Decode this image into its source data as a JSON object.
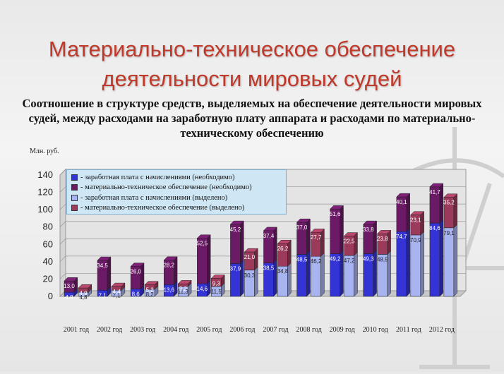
{
  "title_line1": "Материально-техническое обеспечение",
  "title_line2": "деятельности мировых судей",
  "subtitle": "Соотношение в структуре средств, выделяемых на обеспечение деятельности мировых судей, между расходами на заработную плату аппарата и расходами по материально-техническому обеспечению",
  "colors": {
    "salary_needed": "#3333d6",
    "material_needed": "#6b1a66",
    "salary_allocated": "#a8b4f0",
    "material_allocated": "#9c3a5c"
  },
  "chart_data": {
    "type": "bar",
    "ylabel": "Млн. руб.",
    "ylim": [
      0,
      140
    ],
    "yticks": [
      "0",
      "20",
      "40",
      "60",
      "80",
      "100",
      "120",
      "140"
    ],
    "categories": [
      "2001 год",
      "2002 год",
      "2003 год",
      "2004 год",
      "2005 год",
      "2006 год",
      "2007 год",
      "2008 год",
      "2009 год",
      "2010 год",
      "2011 год",
      "2012 год"
    ],
    "legend": [
      "- заработная плата с начислениями (необходимо)",
      "- материально-техническое обеспечение (необходимо)",
      "- заработная плата с начислениями (выделено)",
      "- материально-техническое обеспечение (выделено)"
    ],
    "stacks": [
      {
        "name": "необходимо",
        "salary": [
          4.8,
          7.1,
          8.6,
          13.6,
          14.6,
          37.9,
          38.5,
          48.5,
          49.2,
          49.3,
          74.7,
          84.6
        ],
        "material": [
          13.0,
          34.5,
          26.0,
          28.2,
          52.5,
          45.2,
          37.4,
          37.0,
          51.6,
          33.8,
          40.1,
          41.7
        ],
        "salary_labels": [
          "4,8",
          "7,1",
          "8,6",
          "13,6",
          "14,6",
          "37,9",
          "38,5",
          "48,5",
          "49,2",
          "49,3",
          "74,7",
          "84,6"
        ],
        "material_labels": [
          "13,0",
          "34,5",
          "26,0",
          "28,2",
          "52,5",
          "45,2",
          "37,4",
          "37,0",
          "51,6",
          "33,8",
          "40,1",
          "41,7"
        ]
      },
      {
        "name": "выделено",
        "salary": [
          4.8,
          7.1,
          8.2,
          11.3,
          11.5,
          30.3,
          34.8,
          46.2,
          47.2,
          48.5,
          70.9,
          79.1
        ],
        "material": [
          4.9,
          4.4,
          5.2,
          3.2,
          9.3,
          21.0,
          26.2,
          27.7,
          22.5,
          23.8,
          23.1,
          35.2
        ],
        "salary_labels": [
          "4,8",
          "7,1",
          "8,2",
          "11,3",
          "11,5",
          "30,3",
          "34,8",
          "46,2",
          "47,2",
          "48,5",
          "70,9",
          "79,1"
        ],
        "material_labels": [
          "4,9",
          "4,4",
          "5,2",
          "3,2",
          "9,3",
          "21,0",
          "26,2",
          "27,7",
          "22,5",
          "23,8",
          "23,1",
          "35,2"
        ]
      }
    ]
  }
}
